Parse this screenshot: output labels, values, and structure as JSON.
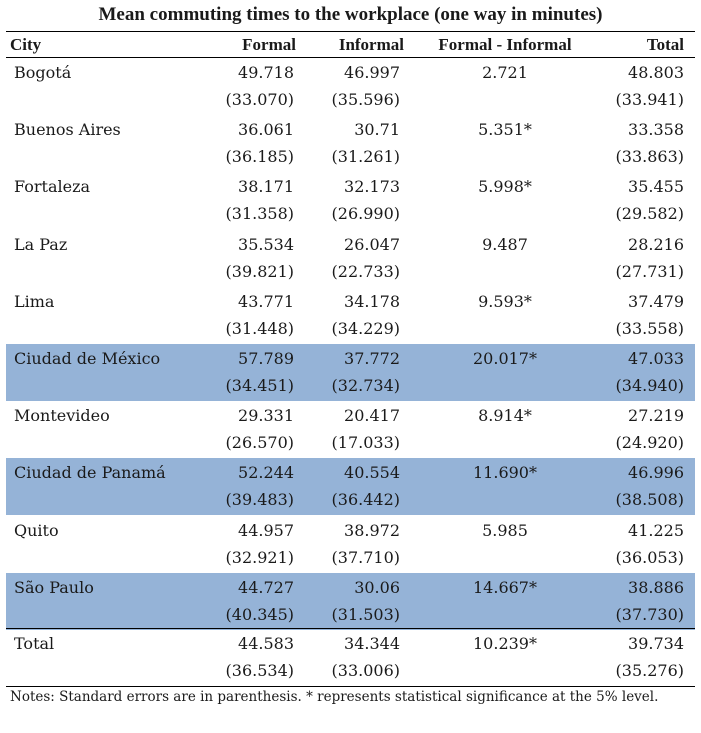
{
  "title": "Mean commuting times to the workplace (one way in minutes)",
  "columns": {
    "city": "City",
    "formal": "Formal",
    "informal": "Informal",
    "diff": "Formal - Informal",
    "total": "Total"
  },
  "highlight_color": "#95b3d7",
  "rows": [
    {
      "city": "Bogotá",
      "formal": "49.718",
      "informal": "46.997",
      "diff": "2.721",
      "total": "48.803",
      "formal_se": "(33.070)",
      "informal_se": "(35.596)",
      "total_se": "(33.941)",
      "highlight": false
    },
    {
      "city": "Buenos Aires",
      "formal": "36.061",
      "informal": "30.71",
      "diff": "5.351*",
      "total": "33.358",
      "formal_se": "(36.185)",
      "informal_se": "(31.261)",
      "total_se": "(33.863)",
      "highlight": false
    },
    {
      "city": "Fortaleza",
      "formal": "38.171",
      "informal": "32.173",
      "diff": "5.998*",
      "total": "35.455",
      "formal_se": "(31.358)",
      "informal_se": "(26.990)",
      "total_se": "(29.582)",
      "highlight": false
    },
    {
      "city": "La Paz",
      "formal": "35.534",
      "informal": "26.047",
      "diff": "9.487",
      "total": "28.216",
      "formal_se": "(39.821)",
      "informal_se": "(22.733)",
      "total_se": "(27.731)",
      "highlight": false
    },
    {
      "city": "Lima",
      "formal": "43.771",
      "informal": "34.178",
      "diff": "9.593*",
      "total": "37.479",
      "formal_se": "(31.448)",
      "informal_se": "(34.229)",
      "total_se": "(33.558)",
      "highlight": false
    },
    {
      "city": "Ciudad de México",
      "formal": "57.789",
      "informal": "37.772",
      "diff": "20.017*",
      "total": "47.033",
      "formal_se": "(34.451)",
      "informal_se": "(32.734)",
      "total_se": "(34.940)",
      "highlight": true
    },
    {
      "city": "Montevideo",
      "formal": "29.331",
      "informal": "20.417",
      "diff": "8.914*",
      "total": "27.219",
      "formal_se": "(26.570)",
      "informal_se": "(17.033)",
      "total_se": "(24.920)",
      "highlight": false
    },
    {
      "city": "Ciudad de Panamá",
      "formal": "52.244",
      "informal": "40.554",
      "diff": "11.690*",
      "total": "46.996",
      "formal_se": "(39.483)",
      "informal_se": "(36.442)",
      "total_se": "(38.508)",
      "highlight": true
    },
    {
      "city": "Quito",
      "formal": "44.957",
      "informal": "38.972",
      "diff": "5.985",
      "total": "41.225",
      "formal_se": "(32.921)",
      "informal_se": "(37.710)",
      "total_se": "(36.053)",
      "highlight": false
    },
    {
      "city": "São Paulo",
      "formal": "44.727",
      "informal": "30.06",
      "diff": "14.667*",
      "total": "38.886",
      "formal_se": "(40.345)",
      "informal_se": "(31.503)",
      "total_se": "(37.730)",
      "highlight": true
    }
  ],
  "total_row": {
    "city": "Total",
    "formal": "44.583",
    "informal": "34.344",
    "diff": "10.239*",
    "total": "39.734",
    "formal_se": "(36.534)",
    "informal_se": "(33.006)",
    "total_se": "(35.276)"
  },
  "notes": "Notes: Standard errors are in parenthesis. * represents statistical significance at the 5% level."
}
